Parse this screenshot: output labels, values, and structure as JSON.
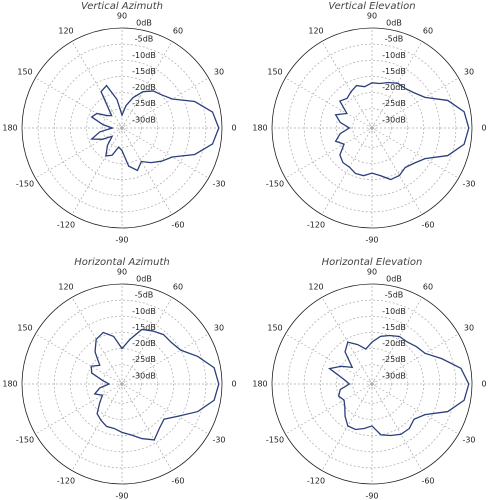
{
  "chart_data": [
    {
      "type": "polar",
      "title": "Vertical Azimuth",
      "thetaticks": [
        0,
        30,
        60,
        90,
        120,
        150,
        180,
        -150,
        -120,
        -90,
        -60,
        -30
      ],
      "rlim": [
        -31,
        0
      ],
      "rticks": [
        {
          "value": 0,
          "label": "0dB"
        },
        {
          "value": -5,
          "label": "-5dB"
        },
        {
          "value": -10,
          "label": "-10dB"
        },
        {
          "value": -15,
          "label": "-15dB"
        },
        {
          "value": -20,
          "label": "-20dB"
        },
        {
          "value": -25,
          "label": "-25dB"
        },
        {
          "value": -30,
          "label": "-30dB"
        }
      ],
      "color": "#2b3f7a",
      "x": [
        -180,
        -170,
        -160,
        -150,
        -140,
        -130,
        -120,
        -110,
        -100,
        -90,
        -80,
        -70,
        -60,
        -50,
        -40,
        -30,
        -20,
        -10,
        0,
        10,
        20,
        30,
        40,
        50,
        60,
        70,
        80,
        90,
        100,
        110,
        120,
        130,
        140,
        150,
        160,
        170
      ],
      "values": [
        -28,
        -24,
        -21,
        -24,
        -27,
        -24,
        -21,
        -22,
        -25,
        -24,
        -19,
        -17,
        -19,
        -17,
        -15,
        -13,
        -7,
        -2.5,
        -1,
        -2.5,
        -7,
        -13,
        -15,
        -16,
        -18,
        -21,
        -24,
        -27,
        -22,
        -17,
        -18,
        -26,
        -25,
        -22,
        -21,
        -25
      ]
    },
    {
      "type": "polar",
      "title": "Vertical Elevation",
      "thetaticks": [
        0,
        30,
        60,
        90,
        120,
        150,
        180,
        -150,
        -120,
        -90,
        -60,
        -30
      ],
      "rlim": [
        -31,
        0
      ],
      "rticks": [
        {
          "value": 0,
          "label": "0dB"
        },
        {
          "value": -5,
          "label": "-5dB"
        },
        {
          "value": -10,
          "label": "-10dB"
        },
        {
          "value": -15,
          "label": "-15dB"
        },
        {
          "value": -20,
          "label": "-20dB"
        },
        {
          "value": -25,
          "label": "-25dB"
        },
        {
          "value": -30,
          "label": "-30dB"
        }
      ],
      "color": "#2b3f7a",
      "x": [
        -180,
        -170,
        -160,
        -150,
        -140,
        -130,
        -120,
        -110,
        -100,
        -90,
        -80,
        -70,
        -60,
        -50,
        -40,
        -30,
        -20,
        -10,
        0,
        10,
        20,
        30,
        40,
        50,
        60,
        70,
        80,
        90,
        100,
        110,
        120,
        130,
        140,
        150,
        160,
        170
      ],
      "values": [
        -24,
        -21,
        -19,
        -21,
        -18,
        -17,
        -17,
        -16,
        -16,
        -17,
        -16,
        -14,
        -14,
        -15,
        -14,
        -12,
        -6,
        -2,
        -1,
        -2,
        -6,
        -12,
        -14,
        -15,
        -15,
        -16,
        -17,
        -17,
        -18,
        -17,
        -18,
        -19,
        -18,
        -22,
        -19,
        -21
      ]
    },
    {
      "type": "polar",
      "title": "Horizontal Azimuth",
      "thetaticks": [
        0,
        30,
        60,
        90,
        120,
        150,
        180,
        -150,
        -120,
        -90,
        -60,
        -30
      ],
      "rlim": [
        -31,
        0
      ],
      "rticks": [
        {
          "value": 0,
          "label": "0dB"
        },
        {
          "value": -5,
          "label": "-5dB"
        },
        {
          "value": -10,
          "label": "-10dB"
        },
        {
          "value": -15,
          "label": "-15dB"
        },
        {
          "value": -20,
          "label": "-20dB"
        },
        {
          "value": -25,
          "label": "-25dB"
        },
        {
          "value": -30,
          "label": "-30dB"
        }
      ],
      "color": "#2b3f7a",
      "x": [
        -180,
        -170,
        -160,
        -150,
        -140,
        -130,
        -120,
        -110,
        -100,
        -90,
        -80,
        -70,
        -60,
        -50,
        -40,
        -30,
        -20,
        -10,
        0,
        10,
        20,
        30,
        40,
        50,
        60,
        70,
        80,
        90,
        100,
        110,
        120,
        130,
        140,
        150,
        160,
        170
      ],
      "values": [
        -27,
        -24,
        -22,
        -24,
        -22,
        -19,
        -18,
        -17,
        -17,
        -16,
        -15,
        -13,
        -11,
        -13,
        -14,
        -11,
        -6,
        -2,
        -1,
        -2,
        -6,
        -10,
        -11,
        -11,
        -12,
        -13,
        -17,
        -20,
        -16,
        -14,
        -15,
        -18,
        -22,
        -20,
        -21,
        -25
      ]
    },
    {
      "type": "polar",
      "title": "Horizontal Elevation",
      "thetaticks": [
        0,
        30,
        60,
        90,
        120,
        150,
        180,
        -150,
        -120,
        -90,
        -60,
        -30
      ],
      "rlim": [
        -31,
        0
      ],
      "rticks": [
        {
          "value": 0,
          "label": "0dB"
        },
        {
          "value": -5,
          "label": "-5dB"
        },
        {
          "value": -10,
          "label": "-10dB"
        },
        {
          "value": -15,
          "label": "-15dB"
        },
        {
          "value": -20,
          "label": "-20dB"
        },
        {
          "value": -25,
          "label": "-25dB"
        },
        {
          "value": -30,
          "label": "-30dB"
        }
      ],
      "color": "#2b3f7a",
      "x": [
        -180,
        -170,
        -160,
        -150,
        -140,
        -130,
        -120,
        -110,
        -100,
        -90,
        -80,
        -70,
        -60,
        -50,
        -40,
        -30,
        -20,
        -10,
        0,
        10,
        20,
        30,
        40,
        50,
        60,
        70,
        80,
        90,
        100,
        110,
        120,
        130,
        140,
        150,
        160,
        170
      ],
      "values": [
        -24,
        -21,
        -20,
        -21,
        -20,
        -18,
        -16,
        -16,
        -17,
        -18,
        -15,
        -14,
        -13,
        -13,
        -14,
        -12,
        -6,
        -2,
        -1,
        -3,
        -8,
        -12,
        -13,
        -14,
        -14,
        -15,
        -16,
        -18,
        -20,
        -18,
        -16,
        -18,
        -23,
        -20,
        -17,
        -22
      ]
    }
  ]
}
